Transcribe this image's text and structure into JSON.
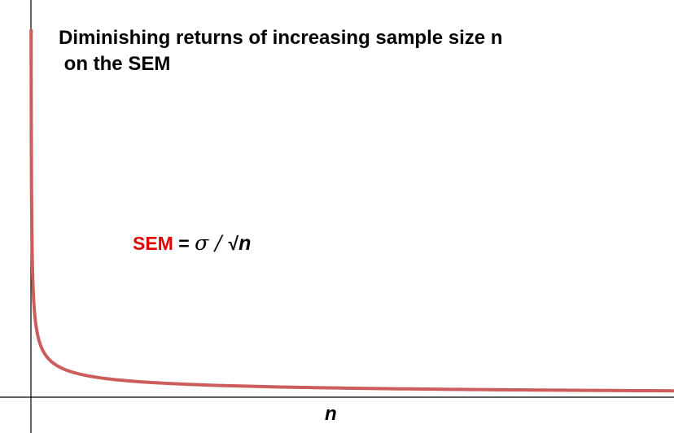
{
  "chart_data": {
    "type": "line",
    "title_lines": [
      "Diminishing returns of increasing sample size n",
      " on the SEM"
    ],
    "annotation": {
      "label": "SEM",
      "equals": " = ",
      "sigma": "σ",
      "slash": " / ",
      "root": "√",
      "n": "n"
    },
    "xlabel": "n",
    "ylabel": "",
    "function": "SEM = sigma / sqrt(n)",
    "x_range": [
      0,
      100
    ],
    "y_range": [
      0,
      6.25
    ],
    "series": [
      {
        "color": "#cd5c5c",
        "x": [
          0.03,
          0.05,
          0.1,
          0.2,
          0.3,
          0.5,
          0.75,
          1,
          1.5,
          2,
          3,
          4,
          5,
          7,
          10,
          15,
          20,
          30,
          40,
          50,
          60,
          70,
          80,
          90,
          100
        ],
        "y": [
          5.774,
          4.472,
          3.162,
          2.236,
          1.826,
          1.414,
          1.155,
          1.0,
          0.816,
          0.707,
          0.577,
          0.5,
          0.447,
          0.378,
          0.316,
          0.258,
          0.224,
          0.183,
          0.158,
          0.141,
          0.129,
          0.12,
          0.112,
          0.105,
          0.1
        ]
      }
    ],
    "grid": false,
    "legend": "none"
  }
}
